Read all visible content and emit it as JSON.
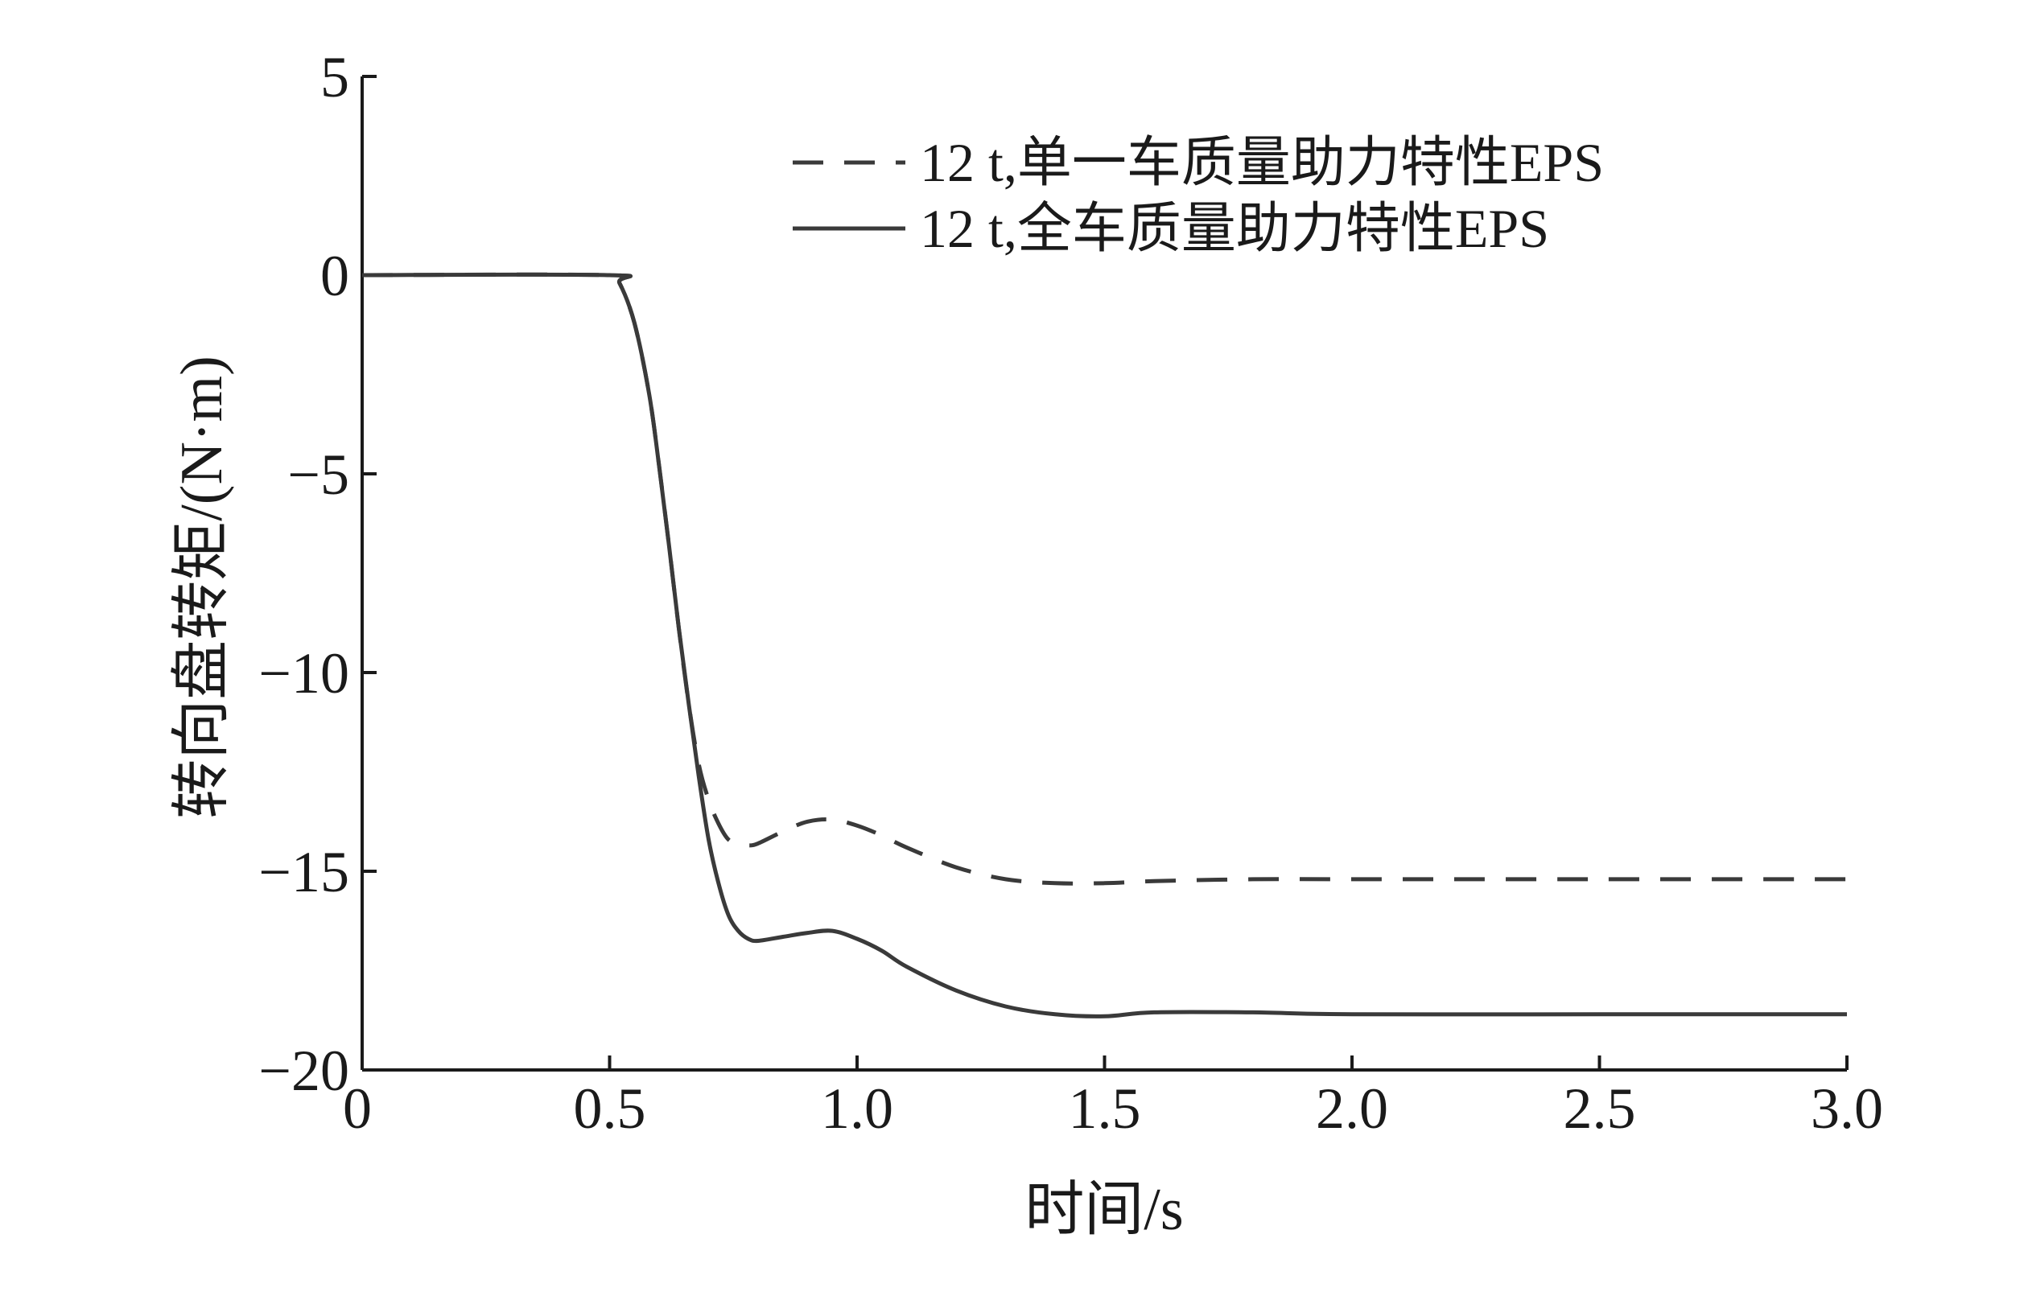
{
  "chart_data": {
    "type": "line",
    "title": "",
    "xlabel": "时间/s",
    "ylabel": "转向盘转矩/(N·m)",
    "xlim": [
      0,
      3.0
    ],
    "ylim": [
      -20,
      5
    ],
    "x_ticks": [
      0,
      0.5,
      1.0,
      1.5,
      2.0,
      2.5,
      3.0
    ],
    "x_tick_labels": [
      "0",
      "0.5",
      "1.0",
      "1.5",
      "2.0",
      "2.5",
      "3.0"
    ],
    "y_ticks": [
      5,
      0,
      -5,
      -10,
      -15,
      -20
    ],
    "y_tick_labels": [
      "5",
      "0",
      "−5",
      "−10",
      "−15",
      "−20"
    ],
    "grid": false,
    "legend_position": "top-right",
    "series": [
      {
        "name": "12 t,单一车质量助力特性EPS",
        "style": "dashed",
        "color": "#3a3a3a",
        "x": [
          0,
          0.5,
          0.52,
          0.55,
          0.58,
          0.6,
          0.62,
          0.64,
          0.66,
          0.68,
          0.7,
          0.72,
          0.74,
          0.76,
          0.78,
          0.8,
          0.85,
          0.9,
          0.95,
          1.0,
          1.05,
          1.1,
          1.2,
          1.3,
          1.4,
          1.5,
          1.6,
          1.8,
          2.0,
          2.5,
          3.0
        ],
        "y": [
          0,
          0,
          -0.2,
          -1.2,
          -3.0,
          -4.8,
          -6.8,
          -8.9,
          -10.8,
          -12.3,
          -13.2,
          -13.8,
          -14.2,
          -14.3,
          -14.35,
          -14.3,
          -14.0,
          -13.75,
          -13.7,
          -13.85,
          -14.1,
          -14.4,
          -14.9,
          -15.2,
          -15.3,
          -15.3,
          -15.25,
          -15.2,
          -15.2,
          -15.2,
          -15.2
        ]
      },
      {
        "name": "12 t,全车质量助力特性EPS",
        "style": "solid",
        "color": "#3a3a3a",
        "x": [
          0,
          0.5,
          0.52,
          0.55,
          0.58,
          0.6,
          0.62,
          0.64,
          0.66,
          0.68,
          0.7,
          0.72,
          0.74,
          0.76,
          0.78,
          0.8,
          0.85,
          0.9,
          0.95,
          1.0,
          1.05,
          1.1,
          1.2,
          1.3,
          1.4,
          1.5,
          1.6,
          1.8,
          2.0,
          2.5,
          3.0
        ],
        "y": [
          0,
          0,
          -0.2,
          -1.2,
          -3.0,
          -4.8,
          -6.8,
          -8.9,
          -10.8,
          -12.6,
          -14.2,
          -15.3,
          -16.1,
          -16.5,
          -16.7,
          -16.75,
          -16.65,
          -16.55,
          -16.5,
          -16.7,
          -17.0,
          -17.4,
          -18.0,
          -18.4,
          -18.6,
          -18.65,
          -18.55,
          -18.55,
          -18.6,
          -18.6,
          -18.6
        ]
      }
    ]
  }
}
